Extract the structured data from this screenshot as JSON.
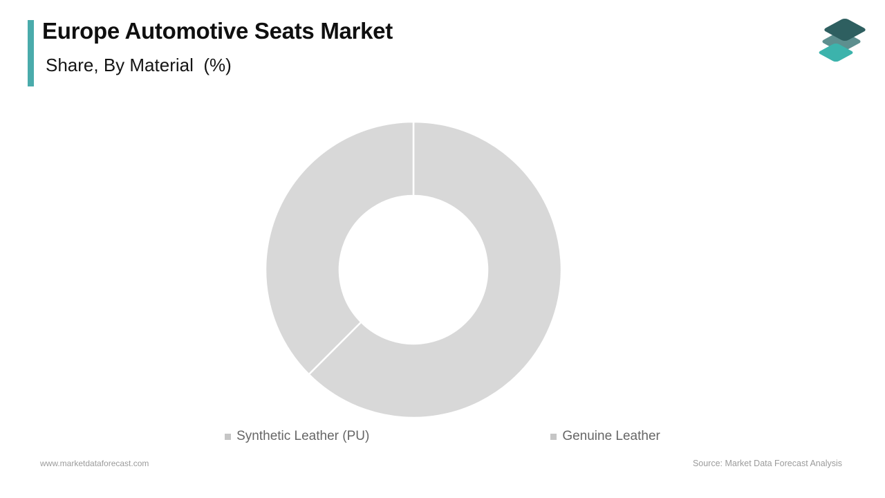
{
  "header": {
    "title": "Europe Automotive Seats Market",
    "subtitle": "Share, By Material  (%)",
    "accent_color": "#4aabab"
  },
  "logo": {
    "name": "market-data-forecast-logo",
    "layer_colors": [
      "#5d8f8f",
      "#3cb3ac",
      "#2e5f60"
    ]
  },
  "chart_data": {
    "type": "pie",
    "variant": "donut",
    "title": "Europe Automotive Seats Market Share, By Material (%)",
    "unit": "%",
    "start_angle_deg": 0,
    "direction": "clockwise",
    "inner_radius_ratio": 0.5,
    "segment_color": "#d8d8d8",
    "divider_color": "#ffffff",
    "values_labeled": false,
    "note": "placeholder-style chart: both slices rendered in gray, no numeric labels shown",
    "categories": [
      "Synthetic Leather (PU)",
      "Genuine Leather"
    ],
    "values": [
      62.5,
      37.5
    ],
    "legend_position": "bottom",
    "legend": [
      {
        "label": "Synthetic Leather (PU)",
        "marker_color": "#c6c6c6"
      },
      {
        "label": "Genuine Leather",
        "marker_color": "#c6c6c6"
      }
    ]
  },
  "footer": {
    "website": "www.marketdataforecast.com",
    "source": "Source: Market Data Forecast Analysis"
  }
}
